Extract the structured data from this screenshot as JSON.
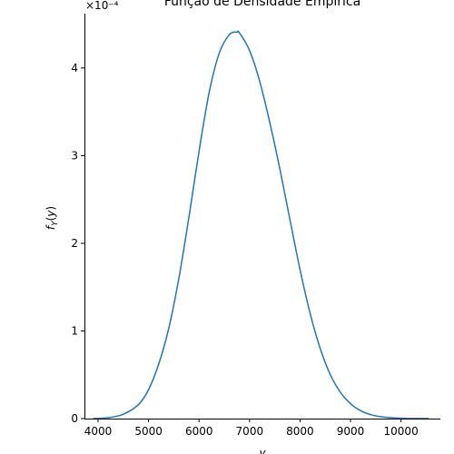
{
  "chart_data": {
    "type": "line",
    "title": "Função de Densidade Empírica",
    "xlabel": "y",
    "ylabel": "f_Y(y)",
    "y_offset_text": "×10⁻⁴",
    "xlim": [
      3730,
      10780
    ],
    "ylim": [
      0,
      4.62
    ],
    "y_scale_multiplier": 0.0001,
    "x_ticks": [
      4000,
      5000,
      6000,
      7000,
      8000,
      9000,
      10000
    ],
    "x_tick_labels": [
      "4000",
      "5000",
      "6000",
      "7000",
      "8000",
      "9000",
      "10000"
    ],
    "y_ticks": [
      0,
      1,
      2,
      3,
      4
    ],
    "y_tick_labels": [
      "0",
      "1",
      "2",
      "3",
      "4"
    ],
    "grid": false,
    "spines": "left-bottom",
    "series": [
      {
        "color": "#1f77b4",
        "x": [
          3900,
          4200,
          4500,
          4800,
          5000,
          5200,
          5400,
          5600,
          5800,
          6000,
          6200,
          6400,
          6600,
          6750,
          6800,
          7000,
          7200,
          7400,
          7600,
          7800,
          8000,
          8200,
          8400,
          8600,
          8800,
          9000,
          9200,
          9400,
          9600,
          9800,
          10000,
          10200,
          10550
        ],
        "y": [
          0.0,
          0.01,
          0.05,
          0.16,
          0.33,
          0.62,
          1.03,
          1.6,
          2.3,
          3.05,
          3.72,
          4.17,
          4.38,
          4.41,
          4.4,
          4.2,
          3.85,
          3.38,
          2.85,
          2.27,
          1.7,
          1.2,
          0.8,
          0.5,
          0.3,
          0.17,
          0.09,
          0.045,
          0.022,
          0.01,
          0.004,
          0.0015,
          0.0
        ]
      }
    ]
  }
}
